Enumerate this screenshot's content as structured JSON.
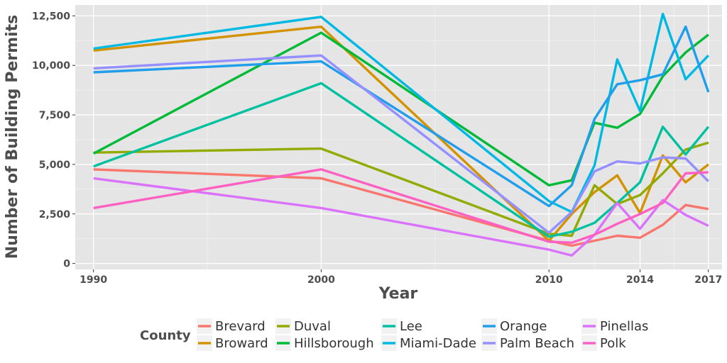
{
  "chart_data": {
    "type": "line",
    "title": "",
    "xlabel": "Year",
    "ylabel": "Number of Building Permits",
    "x_ticks": [
      1990,
      2000,
      2010,
      2014,
      2017
    ],
    "y_ticks": [
      0,
      2500,
      5000,
      7500,
      10000,
      12500
    ],
    "y_tick_labels": [
      "0",
      "2,500",
      "5,000",
      "7,500",
      "10,000",
      "12,500"
    ],
    "xlim": [
      1989.2,
      2017.6
    ],
    "ylim": [
      -300,
      13050
    ],
    "grid": true,
    "legend_title": "County",
    "legend_position": "bottom",
    "x": [
      1990,
      2000,
      2010,
      2011,
      2012,
      2013,
      2014,
      2015,
      2016,
      2017
    ],
    "series": [
      {
        "name": "Brevard",
        "color": "#F8766D",
        "values": [
          4750,
          4300,
          1150,
          900,
          1150,
          1400,
          1300,
          1950,
          2950,
          2750
        ]
      },
      {
        "name": "Broward",
        "color": "#D39200",
        "values": [
          10750,
          11950,
          1150,
          2500,
          3600,
          4450,
          2550,
          5450,
          4100,
          5000
        ]
      },
      {
        "name": "Duval",
        "color": "#93AA00",
        "values": [
          5600,
          5800,
          1500,
          1400,
          3950,
          3000,
          3450,
          4550,
          5750,
          6100
        ]
      },
      {
        "name": "Hillsborough",
        "color": "#00BA38",
        "values": [
          5550,
          11650,
          3950,
          4200,
          7100,
          6850,
          7550,
          9450,
          10650,
          11550
        ]
      },
      {
        "name": "Lee",
        "color": "#00C19F",
        "values": [
          4900,
          9100,
          1350,
          1600,
          2050,
          3050,
          4100,
          6900,
          5500,
          6900
        ]
      },
      {
        "name": "Miami-Dade",
        "color": "#00B9E3",
        "values": [
          10850,
          12450,
          3150,
          2600,
          4950,
          10300,
          7700,
          12600,
          9300,
          10500
        ]
      },
      {
        "name": "Orange",
        "color": "#219EEB",
        "values": [
          9650,
          10200,
          2900,
          3950,
          7300,
          9050,
          9250,
          9550,
          11950,
          8650
        ]
      },
      {
        "name": "Palm Beach",
        "color": "#9590FF",
        "values": [
          9850,
          10500,
          1550,
          2600,
          4650,
          5150,
          5050,
          5350,
          5300,
          4150
        ]
      },
      {
        "name": "Pinellas",
        "color": "#DB72FB",
        "values": [
          4300,
          2800,
          700,
          400,
          1450,
          3050,
          1750,
          3200,
          2450,
          1900
        ]
      },
      {
        "name": "Polk",
        "color": "#FF61C3",
        "values": [
          2800,
          4750,
          1100,
          1050,
          1450,
          2000,
          2500,
          3050,
          4550,
          4600
        ]
      }
    ]
  }
}
